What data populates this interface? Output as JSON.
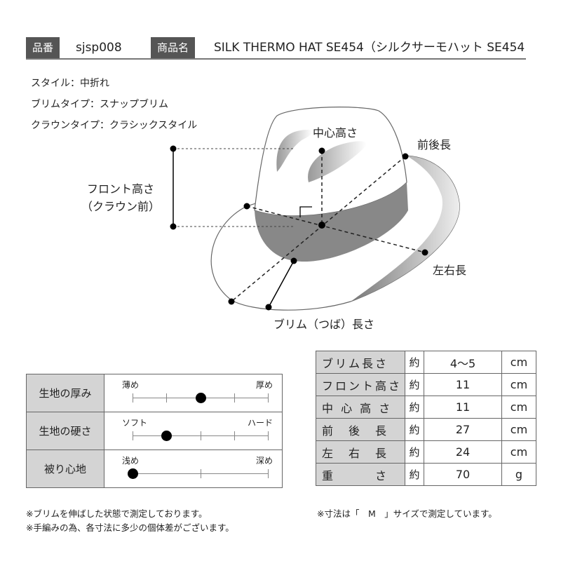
{
  "header": {
    "code_label": "品番",
    "code": "sjsp008",
    "name_label": "商品名",
    "name": "SILK THERMO HAT SE454（シルクサーモハット SE454"
  },
  "specs": [
    "スタイル：中折れ",
    "ブリムタイプ：スナップブリム",
    "クラウンタイプ：クラシックスタイル"
  ],
  "diagram": {
    "center_height": "中心高さ",
    "front_back": "前後長",
    "front_height_1": "フロント高さ",
    "front_height_2": "（クラウン前）",
    "left_right": "左右長",
    "brim": "ブリム（つば）長さ"
  },
  "feel": [
    {
      "label": "生地の厚み",
      "low": "薄め",
      "high": "厚め",
      "ticks": 5,
      "value": 0.5
    },
    {
      "label": "生地の硬さ",
      "low": "ソフト",
      "high": "ハード",
      "ticks": 5,
      "value": 0.25
    },
    {
      "label": "被り心地",
      "low": "浅め",
      "high": "深め",
      "ticks": 3,
      "value": 0
    }
  ],
  "sizes": [
    {
      "label": "ブリム長さ",
      "approx": "約",
      "value": "4〜5",
      "unit": "cm"
    },
    {
      "label": "フロント高さ",
      "approx": "約",
      "value": "11",
      "unit": "cm"
    },
    {
      "label": "中 心 高 さ",
      "approx": "約",
      "value": "11",
      "unit": "cm"
    },
    {
      "label": "前　後　長",
      "approx": "約",
      "value": "27",
      "unit": "cm"
    },
    {
      "label": "左　右　長",
      "approx": "約",
      "value": "24",
      "unit": "cm"
    },
    {
      "label": "重　　　さ",
      "approx": "約",
      "value": "70",
      "unit": "g"
    }
  ],
  "notes": {
    "left1": "※ブリムを伸ばした状態で測定しております。",
    "left2": "※手編みの為、各寸法に多少の個体差がございます。",
    "right": "※寸法は「　M　」サイズで測定しています。"
  }
}
